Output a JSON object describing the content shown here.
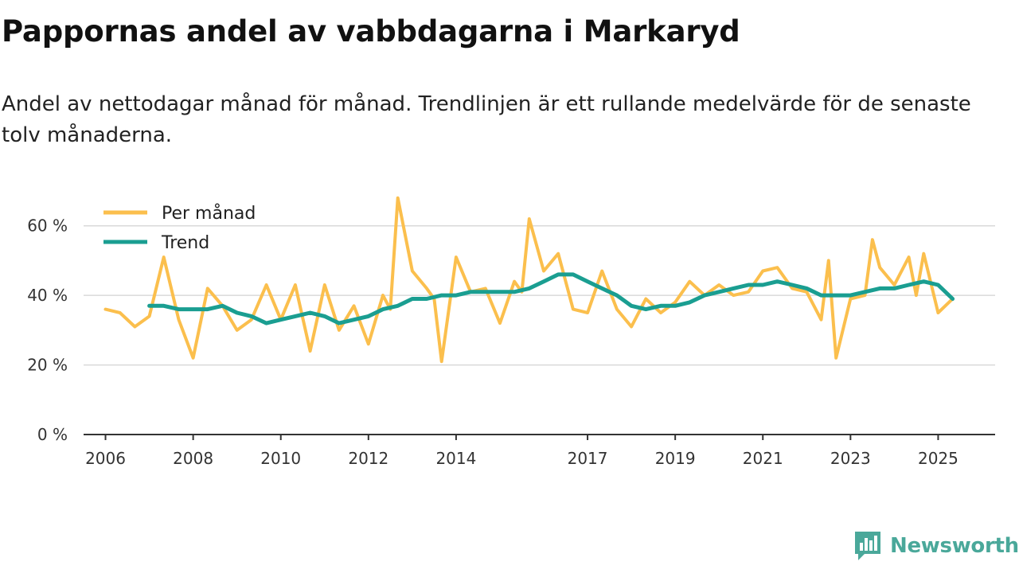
{
  "title": "Pappornas andel av vabbdagarna i Markaryd",
  "subtitle": "Andel av nettodagar månad för månad. Trendlinjen är ett rullande medelvärde för de senaste tolv månaderna.",
  "colors": {
    "monthly": "#fbbf4d",
    "trend": "#1a9e91",
    "grid": "#d9d9d9",
    "axis": "#333333",
    "brand": "#4aa89a"
  },
  "logo": {
    "text": "Newsworthy",
    "icon": "newsworthy-logo-icon"
  },
  "chart_data": {
    "type": "line",
    "title": "Pappornas andel av vabbdagarna i Markaryd",
    "xlabel": "",
    "ylabel": "",
    "ylim": [
      0,
      70
    ],
    "xlim": [
      2005.5,
      2026.3
    ],
    "y_ticks": [
      0,
      20,
      40,
      60
    ],
    "y_tick_labels": [
      "0 %",
      "20 %",
      "40 %",
      "60 %"
    ],
    "x_ticks": [
      2006,
      2008,
      2010,
      2012,
      2014,
      2017,
      2019,
      2021,
      2023,
      2025
    ],
    "x_tick_labels": [
      "2006",
      "2008",
      "2010",
      "2012",
      "2014",
      "2017",
      "2019",
      "2021",
      "2023",
      "2025"
    ],
    "grid": "horizontal",
    "legend_position": "top-left",
    "series": [
      {
        "name": "Per månad",
        "x": [
          2006.0,
          2006.33,
          2006.67,
          2007.0,
          2007.33,
          2007.67,
          2008.0,
          2008.33,
          2008.67,
          2009.0,
          2009.33,
          2009.67,
          2010.0,
          2010.33,
          2010.67,
          2011.0,
          2011.33,
          2011.67,
          2012.0,
          2012.33,
          2012.5,
          2012.67,
          2013.0,
          2013.33,
          2013.5,
          2013.67,
          2014.0,
          2014.33,
          2014.67,
          2015.0,
          2015.33,
          2015.5,
          2015.67,
          2016.0,
          2016.33,
          2016.67,
          2017.0,
          2017.33,
          2017.67,
          2018.0,
          2018.33,
          2018.67,
          2019.0,
          2019.33,
          2019.67,
          2020.0,
          2020.33,
          2020.67,
          2021.0,
          2021.33,
          2021.67,
          2022.0,
          2022.33,
          2022.5,
          2022.67,
          2023.0,
          2023.33,
          2023.5,
          2023.67,
          2024.0,
          2024.33,
          2024.5,
          2024.67,
          2025.0,
          2025.33
        ],
        "values": [
          36,
          35,
          31,
          34,
          51,
          33,
          22,
          42,
          37,
          30,
          33,
          43,
          33,
          43,
          24,
          43,
          30,
          37,
          26,
          40,
          36,
          68,
          47,
          42,
          39,
          21,
          51,
          41,
          42,
          32,
          44,
          41,
          62,
          47,
          52,
          36,
          35,
          47,
          36,
          31,
          39,
          35,
          38,
          44,
          40,
          43,
          40,
          41,
          47,
          48,
          42,
          41,
          33,
          50,
          22,
          39,
          40,
          56,
          48,
          43,
          51,
          40,
          52,
          35,
          39
        ]
      },
      {
        "name": "Trend",
        "x": [
          2007.0,
          2007.33,
          2007.67,
          2008.0,
          2008.33,
          2008.67,
          2009.0,
          2009.33,
          2009.67,
          2010.0,
          2010.33,
          2010.67,
          2011.0,
          2011.33,
          2011.67,
          2012.0,
          2012.33,
          2012.67,
          2013.0,
          2013.33,
          2013.67,
          2014.0,
          2014.33,
          2014.67,
          2015.0,
          2015.33,
          2015.67,
          2016.0,
          2016.33,
          2016.67,
          2017.0,
          2017.33,
          2017.67,
          2018.0,
          2018.33,
          2018.67,
          2019.0,
          2019.33,
          2019.67,
          2020.0,
          2020.33,
          2020.67,
          2021.0,
          2021.33,
          2021.67,
          2022.0,
          2022.33,
          2022.67,
          2023.0,
          2023.33,
          2023.67,
          2024.0,
          2024.33,
          2024.67,
          2025.0,
          2025.33
        ],
        "values": [
          37,
          37,
          36,
          36,
          36,
          37,
          35,
          34,
          32,
          33,
          34,
          35,
          34,
          32,
          33,
          34,
          36,
          37,
          39,
          39,
          40,
          40,
          41,
          41,
          41,
          41,
          42,
          44,
          46,
          46,
          44,
          42,
          40,
          37,
          36,
          37,
          37,
          38,
          40,
          41,
          42,
          43,
          43,
          44,
          43,
          42,
          40,
          40,
          40,
          41,
          42,
          42,
          43,
          44,
          43,
          39
        ]
      }
    ]
  }
}
